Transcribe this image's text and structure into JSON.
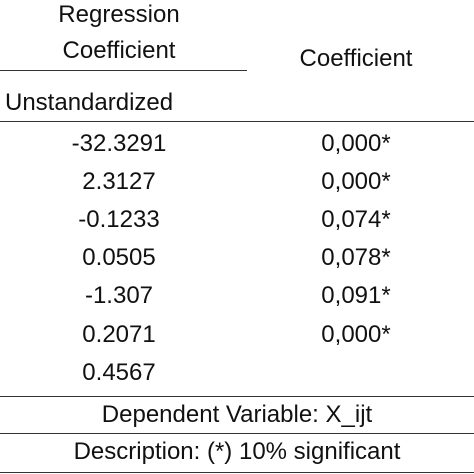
{
  "table": {
    "header": {
      "col1_line1": "Regression",
      "col1_line2": "Coefficient",
      "col1_line3": "Unstandardized",
      "col2": "Coefficient"
    },
    "rows": [
      {
        "unstandardized": "-32.3291",
        "coefficient": "0,000*"
      },
      {
        "unstandardized": "2.3127",
        "coefficient": "0,000*"
      },
      {
        "unstandardized": "-0.1233",
        "coefficient": "0,074*"
      },
      {
        "unstandardized": "0.0505",
        "coefficient": "0,078*"
      },
      {
        "unstandardized": "-1.307",
        "coefficient": "0,091*"
      },
      {
        "unstandardized": "0.2071",
        "coefficient": "0,000*"
      },
      {
        "unstandardized": "0.4567",
        "coefficient": ""
      }
    ],
    "footer": {
      "dependent": "Dependent Variable: X_ijt",
      "description": "Description: (*) 10% significant"
    }
  }
}
